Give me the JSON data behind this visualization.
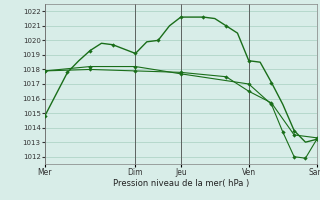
{
  "title": "",
  "xlabel": "Pression niveau de la mer( hPa )",
  "bg_color": "#d8ede8",
  "grid_color": "#a8cfc0",
  "line_color": "#1a6e1a",
  "ylim": [
    1011.5,
    1022.5
  ],
  "yticks": [
    1012,
    1013,
    1014,
    1015,
    1016,
    1017,
    1018,
    1019,
    1020,
    1021,
    1022
  ],
  "day_labels": [
    "Mer",
    "",
    "Dim",
    "Jeu",
    "",
    "Ven",
    "",
    "Sam"
  ],
  "xtick_labels": [
    "Mer",
    "Dim",
    "Jeu",
    "Ven",
    "Sam"
  ],
  "xtick_positions": [
    0,
    8,
    12,
    18,
    24
  ],
  "vline_positions": [
    0,
    8,
    12,
    18,
    24
  ],
  "line1_x": [
    0,
    1,
    2,
    3,
    4,
    5,
    6,
    7,
    8,
    9,
    10,
    11,
    12,
    13,
    14,
    15,
    16,
    17,
    18,
    19,
    20,
    21,
    22,
    23,
    24
  ],
  "line1_y": [
    1014.8,
    1016.3,
    1017.8,
    1018.6,
    1019.3,
    1019.8,
    1019.7,
    1019.4,
    1019.1,
    1019.9,
    1020.0,
    1021.0,
    1021.6,
    1021.6,
    1021.6,
    1021.5,
    1021.0,
    1020.5,
    1018.6,
    1018.5,
    1017.1,
    1015.6,
    1013.8,
    1013.0,
    1013.2
  ],
  "line2_x": [
    0,
    4,
    8,
    12,
    16,
    18,
    20,
    22,
    24
  ],
  "line2_y": [
    1017.9,
    1018.0,
    1017.9,
    1017.8,
    1017.5,
    1016.5,
    1015.7,
    1013.5,
    1013.3
  ],
  "line3_x": [
    0,
    4,
    8,
    12,
    18,
    20,
    21,
    22,
    23,
    24
  ],
  "line3_y": [
    1017.9,
    1018.2,
    1018.2,
    1017.7,
    1017.0,
    1015.6,
    1013.7,
    1012.0,
    1011.9,
    1013.2
  ],
  "marker1_x": [
    0,
    2,
    4,
    6,
    8,
    10,
    12,
    14,
    16,
    18,
    20,
    22,
    24
  ],
  "marker1_y": [
    1014.8,
    1017.8,
    1019.3,
    1019.7,
    1019.1,
    1020.0,
    1021.6,
    1021.6,
    1021.0,
    1018.6,
    1017.1,
    1013.8,
    1013.2
  ],
  "marker2_x": [
    0,
    4,
    8,
    12,
    16,
    18,
    20,
    22,
    24
  ],
  "marker2_y": [
    1017.9,
    1018.0,
    1017.9,
    1017.8,
    1017.5,
    1016.5,
    1015.7,
    1013.5,
    1013.3
  ],
  "marker3_x": [
    0,
    4,
    8,
    12,
    18,
    20,
    21,
    22,
    23,
    24
  ],
  "marker3_y": [
    1017.9,
    1018.2,
    1018.2,
    1017.7,
    1017.0,
    1015.6,
    1013.7,
    1012.0,
    1011.9,
    1013.2
  ],
  "font_size_ytick": 5.0,
  "font_size_xtick": 5.5,
  "font_size_xlabel": 6.0,
  "linewidth1": 1.0,
  "linewidth2": 0.8,
  "markersize": 2.2
}
